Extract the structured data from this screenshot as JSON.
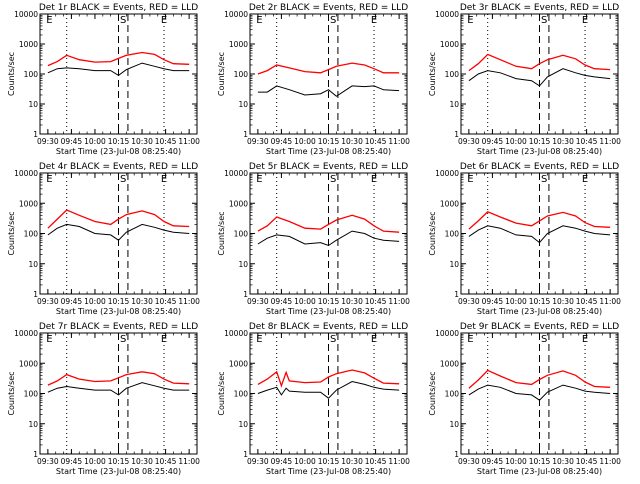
{
  "figure": {
    "xlabel": "Start Time (23-Jul-08 08:25:40)",
    "ylabel": "Counts/sec",
    "x_ticks": [
      "09:30",
      "09:45",
      "10:00",
      "10:15",
      "10:30",
      "10:45",
      "11:00"
    ],
    "y_ticks": [
      "1",
      "10",
      "100",
      "1000",
      "10000"
    ],
    "colors": {
      "events": "#000000",
      "lld": "#ff0000",
      "axes": "#000000"
    },
    "markers": {
      "dotted_lines": [
        "09:42",
        "10:44"
      ],
      "dashed_lines": [
        "10:15",
        "10:21"
      ],
      "labels": [
        {
          "text": "E",
          "at": "09:31"
        },
        {
          "text": "S",
          "at": "10:18"
        },
        {
          "text": "E",
          "at": "10:44"
        }
      ]
    }
  },
  "chart_data": [
    {
      "type": "line",
      "title": "Det 1r BLACK = Events, RED = LLD",
      "x_ticks": [
        "09:30",
        "09:45",
        "10:00",
        "10:15",
        "10:30",
        "10:45",
        "11:00"
      ],
      "ylim": [
        1,
        10000
      ],
      "y_scale": "log",
      "series": [
        {
          "x": [
            "09:30",
            "09:36",
            "09:42",
            "09:50",
            "10:00",
            "10:10",
            "10:15",
            "10:20",
            "10:30",
            "10:38",
            "10:44",
            "10:50",
            "11:00"
          ],
          "values": [
            190,
            260,
            420,
            300,
            250,
            260,
            330,
            420,
            520,
            450,
            300,
            220,
            210
          ]
        },
        {
          "x": [
            "09:30",
            "09:36",
            "09:42",
            "09:50",
            "10:00",
            "10:10",
            "10:15",
            "10:20",
            "10:30",
            "10:38",
            "10:44",
            "10:50",
            "11:00"
          ],
          "values": [
            110,
            150,
            160,
            150,
            130,
            130,
            90,
            140,
            230,
            180,
            150,
            130,
            130
          ]
        }
      ]
    },
    {
      "type": "line",
      "title": "Det 2r BLACK = Events, RED = LLD",
      "x_ticks": [
        "09:30",
        "09:45",
        "10:00",
        "10:15",
        "10:30",
        "10:45",
        "11:00"
      ],
      "ylim": [
        1,
        10000
      ],
      "y_scale": "log",
      "series": [
        {
          "x": [
            "09:30",
            "09:36",
            "09:42",
            "09:50",
            "10:00",
            "10:10",
            "10:15",
            "10:20",
            "10:30",
            "10:38",
            "10:44",
            "10:50",
            "11:00"
          ],
          "values": [
            100,
            130,
            200,
            160,
            120,
            110,
            140,
            180,
            230,
            200,
            150,
            110,
            110
          ]
        },
        {
          "x": [
            "09:30",
            "09:36",
            "09:42",
            "09:50",
            "10:00",
            "10:10",
            "10:15",
            "10:20",
            "10:30",
            "10:38",
            "10:44",
            "10:50",
            "11:00"
          ],
          "values": [
            25,
            25,
            40,
            30,
            20,
            22,
            30,
            18,
            40,
            38,
            40,
            30,
            28
          ]
        }
      ]
    },
    {
      "type": "line",
      "title": "Det 3r BLACK = Events, RED = LLD",
      "x_ticks": [
        "09:30",
        "09:45",
        "10:00",
        "10:15",
        "10:30",
        "10:45",
        "11:00"
      ],
      "ylim": [
        1,
        10000
      ],
      "y_scale": "log",
      "series": [
        {
          "x": [
            "09:30",
            "09:36",
            "09:42",
            "09:50",
            "10:00",
            "10:10",
            "10:15",
            "10:20",
            "10:30",
            "10:38",
            "10:44",
            "10:50",
            "11:00"
          ],
          "values": [
            130,
            220,
            450,
            300,
            180,
            150,
            220,
            300,
            420,
            320,
            200,
            150,
            140
          ]
        },
        {
          "x": [
            "09:30",
            "09:36",
            "09:42",
            "09:50",
            "10:00",
            "10:10",
            "10:15",
            "10:20",
            "10:30",
            "10:38",
            "10:44",
            "10:50",
            "11:00"
          ],
          "values": [
            60,
            100,
            130,
            110,
            70,
            60,
            40,
            80,
            150,
            110,
            90,
            80,
            70
          ]
        }
      ]
    },
    {
      "type": "line",
      "title": "Det 4r BLACK = Events, RED = LLD",
      "x_ticks": [
        "09:30",
        "09:45",
        "10:00",
        "10:15",
        "10:30",
        "10:45",
        "11:00"
      ],
      "ylim": [
        1,
        10000
      ],
      "y_scale": "log",
      "series": [
        {
          "x": [
            "09:30",
            "09:36",
            "09:42",
            "09:50",
            "10:00",
            "10:10",
            "10:15",
            "10:20",
            "10:30",
            "10:38",
            "10:44",
            "10:50",
            "11:00"
          ],
          "values": [
            150,
            300,
            600,
            400,
            250,
            200,
            300,
            420,
            560,
            420,
            250,
            180,
            170
          ]
        },
        {
          "x": [
            "09:30",
            "09:36",
            "09:42",
            "09:50",
            "10:00",
            "10:10",
            "10:15",
            "10:20",
            "10:30",
            "10:38",
            "10:44",
            "10:50",
            "11:00"
          ],
          "values": [
            90,
            150,
            200,
            170,
            100,
            90,
            60,
            110,
            200,
            160,
            130,
            110,
            100
          ]
        }
      ]
    },
    {
      "type": "line",
      "title": "Det 5r BLACK = Events, RED = LLD",
      "x_ticks": [
        "09:30",
        "09:45",
        "10:00",
        "10:15",
        "10:30",
        "10:45",
        "11:00"
      ],
      "ylim": [
        1,
        10000
      ],
      "y_scale": "log",
      "series": [
        {
          "x": [
            "09:30",
            "09:36",
            "09:42",
            "09:50",
            "10:00",
            "10:10",
            "10:15",
            "10:20",
            "10:30",
            "10:38",
            "10:44",
            "10:50",
            "11:00"
          ],
          "values": [
            120,
            180,
            350,
            250,
            150,
            140,
            200,
            280,
            400,
            300,
            180,
            120,
            110
          ]
        },
        {
          "x": [
            "09:30",
            "09:36",
            "09:42",
            "09:50",
            "10:00",
            "10:10",
            "10:15",
            "10:20",
            "10:30",
            "10:38",
            "10:44",
            "10:50",
            "11:00"
          ],
          "values": [
            45,
            70,
            90,
            80,
            45,
            50,
            40,
            60,
            120,
            100,
            70,
            60,
            55
          ]
        }
      ]
    },
    {
      "type": "line",
      "title": "Det 6r BLACK = Events, RED = LLD",
      "x_ticks": [
        "09:30",
        "09:45",
        "10:00",
        "10:15",
        "10:30",
        "10:45",
        "11:00"
      ],
      "ylim": [
        1,
        10000
      ],
      "y_scale": "log",
      "series": [
        {
          "x": [
            "09:30",
            "09:36",
            "09:42",
            "09:50",
            "10:00",
            "10:10",
            "10:15",
            "10:20",
            "10:30",
            "10:38",
            "10:44",
            "10:50",
            "11:00"
          ],
          "values": [
            140,
            260,
            520,
            350,
            220,
            180,
            260,
            380,
            500,
            380,
            230,
            170,
            160
          ]
        },
        {
          "x": [
            "09:30",
            "09:36",
            "09:42",
            "09:50",
            "10:00",
            "10:10",
            "10:15",
            "10:20",
            "10:30",
            "10:38",
            "10:44",
            "10:50",
            "11:00"
          ],
          "values": [
            80,
            130,
            180,
            150,
            90,
            80,
            50,
            100,
            180,
            150,
            120,
            100,
            90
          ]
        }
      ]
    },
    {
      "type": "line",
      "title": "Det 7r BLACK = Events, RED = LLD",
      "x_ticks": [
        "09:30",
        "09:45",
        "10:00",
        "10:15",
        "10:30",
        "10:45",
        "11:00"
      ],
      "ylim": [
        1,
        10000
      ],
      "y_scale": "log",
      "series": [
        {
          "x": [
            "09:30",
            "09:36",
            "09:42",
            "09:50",
            "10:00",
            "10:10",
            "10:15",
            "10:20",
            "10:30",
            "10:38",
            "10:44",
            "10:50",
            "11:00"
          ],
          "values": [
            190,
            260,
            420,
            300,
            250,
            260,
            330,
            420,
            520,
            450,
            300,
            220,
            210
          ]
        },
        {
          "x": [
            "09:30",
            "09:36",
            "09:42",
            "09:50",
            "10:00",
            "10:10",
            "10:15",
            "10:20",
            "10:30",
            "10:38",
            "10:44",
            "10:50",
            "11:00"
          ],
          "values": [
            110,
            150,
            170,
            150,
            130,
            130,
            90,
            150,
            230,
            180,
            150,
            130,
            130
          ]
        }
      ]
    },
    {
      "type": "line",
      "title": "Det 8r BLACK = Events, RED = LLD",
      "x_ticks": [
        "09:30",
        "09:45",
        "10:00",
        "10:15",
        "10:30",
        "10:45",
        "11:00"
      ],
      "ylim": [
        1,
        10000
      ],
      "y_scale": "log",
      "series": [
        {
          "x": [
            "09:30",
            "09:36",
            "09:42",
            "09:45",
            "09:48",
            "09:50",
            "10:00",
            "10:10",
            "10:15",
            "10:20",
            "10:30",
            "10:38",
            "10:44",
            "10:50",
            "11:00"
          ],
          "values": [
            200,
            300,
            520,
            180,
            500,
            260,
            230,
            240,
            350,
            450,
            600,
            480,
            320,
            220,
            210
          ]
        },
        {
          "x": [
            "09:30",
            "09:36",
            "09:42",
            "09:45",
            "09:48",
            "09:50",
            "10:00",
            "10:10",
            "10:15",
            "10:20",
            "10:30",
            "10:38",
            "10:44",
            "10:50",
            "11:00"
          ],
          "values": [
            100,
            130,
            160,
            90,
            150,
            120,
            110,
            110,
            70,
            130,
            250,
            200,
            160,
            140,
            130
          ]
        }
      ]
    },
    {
      "type": "line",
      "title": "Det 9r BLACK = Events, RED = LLD",
      "x_ticks": [
        "09:30",
        "09:45",
        "10:00",
        "10:15",
        "10:30",
        "10:45",
        "11:00"
      ],
      "ylim": [
        1,
        10000
      ],
      "y_scale": "log",
      "series": [
        {
          "x": [
            "09:30",
            "09:36",
            "09:42",
            "09:50",
            "10:00",
            "10:10",
            "10:15",
            "10:20",
            "10:30",
            "10:38",
            "10:44",
            "10:50",
            "11:00"
          ],
          "values": [
            150,
            280,
            580,
            380,
            230,
            200,
            290,
            400,
            560,
            400,
            240,
            170,
            160
          ]
        },
        {
          "x": [
            "09:30",
            "09:36",
            "09:42",
            "09:50",
            "10:00",
            "10:10",
            "10:15",
            "10:20",
            "10:30",
            "10:38",
            "10:44",
            "10:50",
            "11:00"
          ],
          "values": [
            90,
            140,
            190,
            160,
            100,
            90,
            60,
            110,
            190,
            150,
            120,
            110,
            100
          ]
        }
      ]
    }
  ]
}
